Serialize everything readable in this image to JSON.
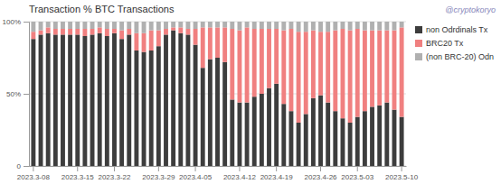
{
  "chart_data": {
    "type": "bar",
    "title": "Transaction %  BTC Transactions",
    "annotations": [
      "@cryptokoryo"
    ],
    "categories": [
      "2023.3-08",
      null,
      null,
      null,
      null,
      null,
      "2023.3-15",
      null,
      null,
      null,
      null,
      "2023.3-22",
      null,
      null,
      null,
      null,
      null,
      "2023.3-29",
      null,
      null,
      null,
      null,
      "2023.4-05",
      null,
      null,
      null,
      null,
      null,
      "2023.4-12",
      null,
      null,
      null,
      null,
      "2023.4-19",
      null,
      null,
      null,
      null,
      null,
      "2023.4-26",
      null,
      null,
      null,
      null,
      "2023.5-03",
      null,
      null,
      null,
      null,
      null,
      "2023.5-10"
    ],
    "series": [
      {
        "name": "non Odrdinals Tx",
        "color": "#3d3d3d",
        "values": [
          88,
          91,
          92,
          91,
          91,
          91,
          91,
          90,
          91,
          92,
          90,
          92,
          88,
          91,
          80,
          79,
          80,
          83,
          91,
          94,
          92,
          91,
          84,
          68,
          74,
          75,
          72,
          46,
          44,
          44,
          48,
          50,
          54,
          57,
          43,
          38,
          30,
          36,
          47,
          49,
          44,
          38,
          33,
          30,
          34,
          38,
          41,
          42,
          44,
          39,
          34
        ]
      },
      {
        "name": "BRC20 Tx",
        "color": "#f08080",
        "values": [
          5,
          3,
          4,
          4,
          4,
          4,
          4,
          5,
          4,
          4,
          5,
          3,
          6,
          4,
          12,
          13,
          14,
          11,
          4,
          2,
          4,
          4,
          11,
          28,
          22,
          21,
          24,
          49,
          50,
          52,
          47,
          45,
          41,
          38,
          51,
          57,
          63,
          57,
          47,
          44,
          49,
          56,
          62,
          64,
          61,
          56,
          53,
          52,
          50,
          55,
          62
        ]
      },
      {
        "name": "(non BRC-20) Odn",
        "color": "#b0b0b0",
        "values": [
          7,
          6,
          4,
          5,
          5,
          5,
          5,
          5,
          5,
          4,
          5,
          5,
          6,
          5,
          8,
          8,
          6,
          6,
          5,
          4,
          4,
          5,
          5,
          4,
          4,
          4,
          4,
          5,
          6,
          4,
          5,
          5,
          5,
          5,
          6,
          5,
          7,
          7,
          6,
          7,
          7,
          6,
          5,
          6,
          5,
          6,
          6,
          6,
          6,
          6,
          4
        ]
      }
    ],
    "stacked": true,
    "ylim": [
      0,
      100
    ],
    "yticks": [
      0,
      {
        "value": 50,
        "label": "50%"
      },
      {
        "value": 100,
        "label": "100%"
      }
    ],
    "grid": true,
    "legend": "right"
  }
}
